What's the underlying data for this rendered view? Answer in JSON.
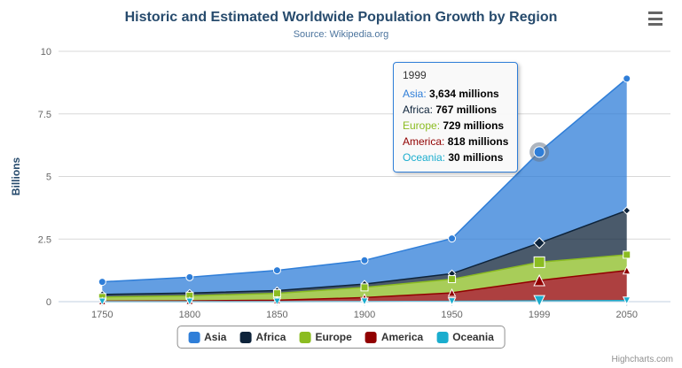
{
  "title": "Historic and Estimated Worldwide Population Growth by Region",
  "subtitle": "Source: Wikipedia.org",
  "credits": "Highcharts.com",
  "colors": {
    "title": "#274b6d",
    "subtitle": "#4d759e",
    "axis_label": "#666666",
    "grid": "#d8d8d8",
    "axis_line": "#c0d0e0",
    "credits": "#909090",
    "legend_border": "#909090",
    "tooltip_border": "#2f7ed8",
    "halo": "#69798a"
  },
  "chart_data": {
    "type": "area",
    "stacking": "normal",
    "title": "Historic and Estimated Worldwide Population Growth by Region",
    "subtitle": "Source: Wikipedia.org",
    "categories": [
      "1750",
      "1800",
      "1850",
      "1900",
      "1950",
      "1999",
      "2050"
    ],
    "series": [
      {
        "name": "Asia",
        "color": "#2f7ed8",
        "marker": "circle",
        "values": [
          502,
          635,
          809,
          947,
          1402,
          3634,
          5268
        ]
      },
      {
        "name": "Africa",
        "color": "#0d233a",
        "marker": "diamond",
        "values": [
          106,
          107,
          111,
          133,
          221,
          767,
          1766
        ]
      },
      {
        "name": "Europe",
        "color": "#8bbc21",
        "marker": "square",
        "values": [
          163,
          203,
          276,
          408,
          547,
          729,
          628
        ]
      },
      {
        "name": "America",
        "color": "#910000",
        "marker": "triangle",
        "values": [
          18,
          31,
          54,
          156,
          339,
          818,
          1201
        ]
      },
      {
        "name": "Oceania",
        "color": "#1aadce",
        "marker": "triangle-down",
        "values": [
          2,
          2,
          2,
          6,
          13,
          30,
          46
        ]
      }
    ],
    "values_unit": "millions",
    "xlabel": "",
    "ylabel": "Billions",
    "yticks": [
      0,
      2.5,
      5,
      7.5,
      10
    ],
    "ylim": [
      0,
      10
    ],
    "grid": true,
    "legend_position": "bottom",
    "hover": {
      "index": 5,
      "series": "Asia",
      "category": "1999"
    }
  },
  "tooltip": {
    "header": "1999",
    "rows": [
      {
        "label": "Asia",
        "value": "3,634 millions"
      },
      {
        "label": "Africa",
        "value": "767 millions"
      },
      {
        "label": "Europe",
        "value": "729 millions"
      },
      {
        "label": "America",
        "value": "818 millions"
      },
      {
        "label": "Oceania",
        "value": "30 millions"
      }
    ]
  },
  "legend": {
    "items": [
      "Asia",
      "Africa",
      "Europe",
      "America",
      "Oceania"
    ]
  }
}
